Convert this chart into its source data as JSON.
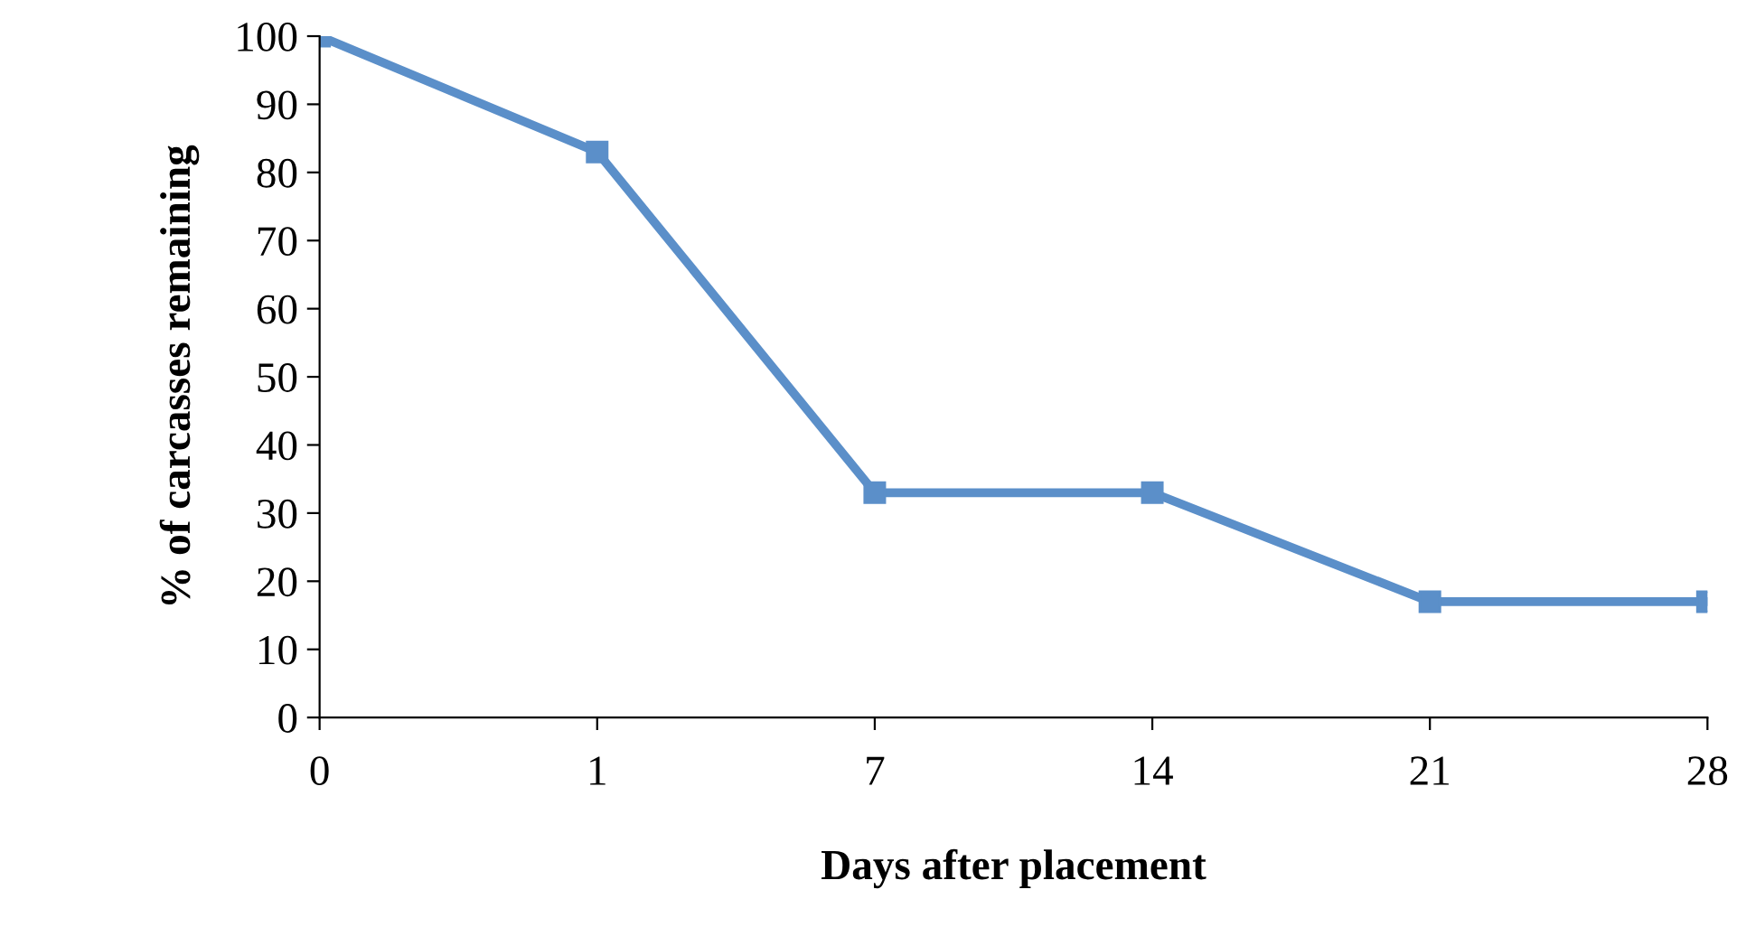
{
  "chart_data": {
    "type": "line",
    "xlabel": "Days after placement",
    "ylabel": "% of carcasses remaining",
    "categories": [
      "0",
      "1",
      "7",
      "14",
      "21",
      "28"
    ],
    "series": [
      {
        "color": "#5b8fc9",
        "values": [
          100,
          83,
          33,
          33,
          17,
          17
        ]
      }
    ],
    "ylim": [
      0,
      100
    ],
    "yticks": [
      0,
      10,
      20,
      30,
      40,
      50,
      60,
      70,
      80,
      90,
      100
    ],
    "grid": false,
    "legend": false,
    "marker": "square",
    "line_style": "solid"
  }
}
